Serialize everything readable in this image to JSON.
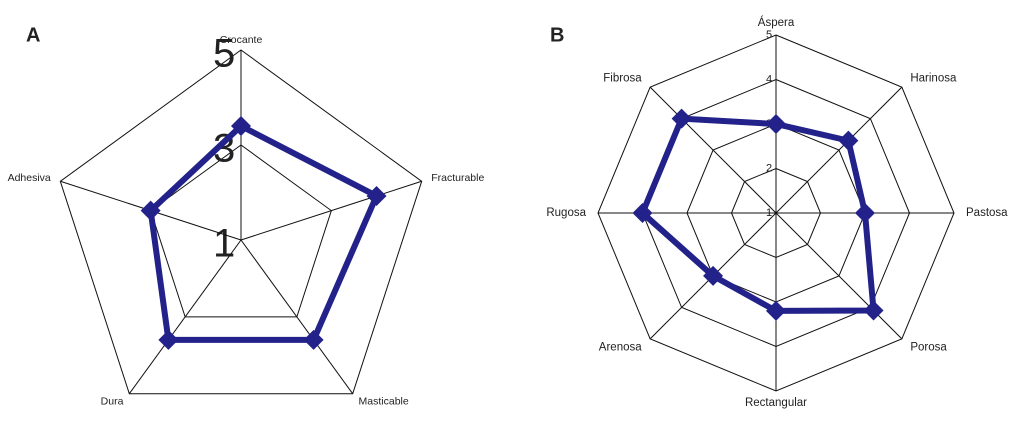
{
  "chart_data": [
    {
      "type": "radar",
      "label": "A",
      "categories": [
        "Crocante",
        "Fracturable",
        "Masticable",
        "Dura",
        "Adhesiva"
      ],
      "series": [
        {
          "color": "#22228a",
          "values": [
            3.4,
            4.0,
            3.6,
            3.6,
            3.0
          ]
        }
      ],
      "ylim": [
        1,
        5
      ],
      "yticks": [
        1,
        3,
        5
      ]
    },
    {
      "type": "radar",
      "label": "B",
      "categories": [
        "Áspera",
        "Harinosa",
        "Pastosa",
        "Porosa",
        "Rectangular",
        "Arenosa",
        "Rugosa",
        "Fibrosa"
      ],
      "series": [
        {
          "color": "#22228a",
          "values": [
            3.0,
            3.3,
            3.0,
            4.1,
            3.2,
            3.0,
            4.0,
            4.0
          ]
        }
      ],
      "ylim": [
        1,
        5
      ],
      "yticks": [
        1,
        2,
        3,
        4,
        5
      ]
    }
  ]
}
